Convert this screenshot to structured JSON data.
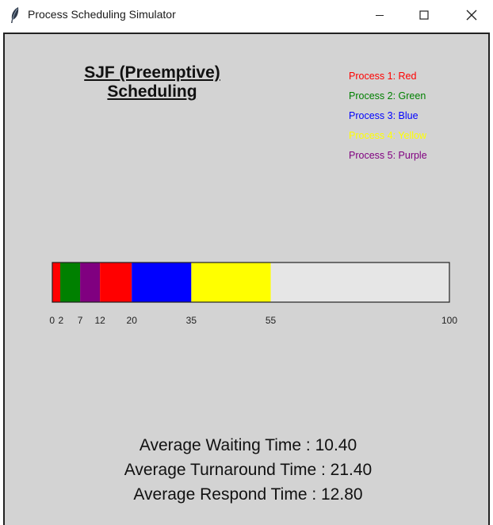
{
  "window": {
    "title": "Process Scheduling Simulator"
  },
  "heading": {
    "line1": "SJF (Preemptive)",
    "line2": "Scheduling"
  },
  "legend": [
    {
      "label": "Process 1: Red",
      "color": "#ff0000"
    },
    {
      "label": "Process 2: Green",
      "color": "#008000"
    },
    {
      "label": "Process 3: Blue",
      "color": "#0000ff"
    },
    {
      "label": "Process 4: Yellow",
      "color": "#ffff00"
    },
    {
      "label": "Process 5: Purple",
      "color": "#800080"
    }
  ],
  "gantt": {
    "total": 100,
    "empty_color": "#e6e6e6",
    "segments": [
      {
        "process": 1,
        "start": 0,
        "end": 2,
        "color": "#ff0000"
      },
      {
        "process": 2,
        "start": 2,
        "end": 7,
        "color": "#008000"
      },
      {
        "process": 5,
        "start": 7,
        "end": 12,
        "color": "#800080"
      },
      {
        "process": 1,
        "start": 12,
        "end": 20,
        "color": "#ff0000"
      },
      {
        "process": 3,
        "start": 20,
        "end": 35,
        "color": "#0000ff"
      },
      {
        "process": 4,
        "start": 35,
        "end": 55,
        "color": "#ffff00"
      }
    ],
    "ticks": [
      "0",
      "2",
      "7",
      "12",
      "20",
      "35",
      "55",
      "100"
    ]
  },
  "stats": {
    "waiting": "Average Waiting Time : 10.40",
    "turnaround": "Average Turnaround Time : 21.40",
    "respond": "Average Respond Time : 12.80"
  }
}
